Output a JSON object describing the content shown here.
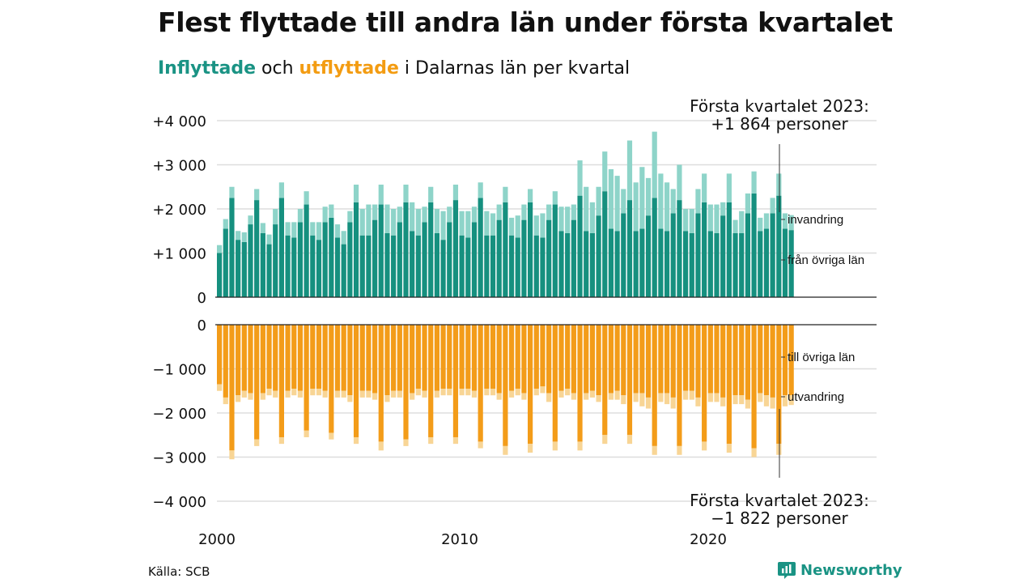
{
  "header": {
    "title": "Flest flyttade till andra län under första kvartalet",
    "subtitle_in": "Inflyttade",
    "subtitle_mid": " och ",
    "subtitle_out": "utflyttade",
    "subtitle_rest": " i Dalarnas län per kvartal"
  },
  "source": "Källa: SCB",
  "brand": {
    "name": "Newsworthy",
    "icon": "newsworthy-logo-icon"
  },
  "colors": {
    "in_domestic": "#16907f",
    "in_immigration": "#8ed4c9",
    "out_domestic": "#f39c19",
    "out_emigration": "#f8d595",
    "grid": "#dddddd",
    "axis": "#222222"
  },
  "chart_data": {
    "type": "bar",
    "layout": "diverging stacked bars, inflow panel on top and outflow panel below",
    "x_ticks": [
      "2000",
      "2010",
      "2020"
    ],
    "top_panel": {
      "ylim": [
        0,
        4000
      ],
      "y_ticks": [
        "0",
        "+1 000",
        "+2 000",
        "+3 000",
        "+4 000"
      ],
      "y_tick_values": [
        0,
        1000,
        2000,
        3000,
        4000
      ],
      "series_labels": [
        "från övriga län",
        "invandring"
      ]
    },
    "bottom_panel": {
      "ylim": [
        -4000,
        0
      ],
      "y_ticks": [
        "0",
        "−1 000",
        "−2 000",
        "−3 000",
        "−4 000"
      ],
      "y_tick_values": [
        0,
        -1000,
        -2000,
        -3000,
        -4000
      ],
      "series_labels": [
        "till övriga län",
        "utvandring"
      ]
    },
    "annotation_top": {
      "line1": "Första kvartalet 2023:",
      "line2": "+1 864 personer"
    },
    "annotation_bottom": {
      "line1": "Första kvartalet 2023:",
      "line2": "−1 822 personer"
    },
    "periods": [
      "2000 K1",
      "2000 K2",
      "2000 K3",
      "2000 K4",
      "2001 K1",
      "2001 K2",
      "2001 K3",
      "2001 K4",
      "2002 K1",
      "2002 K2",
      "2002 K3",
      "2002 K4",
      "2003 K1",
      "2003 K2",
      "2003 K3",
      "2003 K4",
      "2004 K1",
      "2004 K2",
      "2004 K3",
      "2004 K4",
      "2005 K1",
      "2005 K2",
      "2005 K3",
      "2005 K4",
      "2006 K1",
      "2006 K2",
      "2006 K3",
      "2006 K4",
      "2007 K1",
      "2007 K2",
      "2007 K3",
      "2007 K4",
      "2008 K1",
      "2008 K2",
      "2008 K3",
      "2008 K4",
      "2009 K1",
      "2009 K2",
      "2009 K3",
      "2009 K4",
      "2010 K1",
      "2010 K2",
      "2010 K3",
      "2010 K4",
      "2011 K1",
      "2011 K2",
      "2011 K3",
      "2011 K4",
      "2012 K1",
      "2012 K2",
      "2012 K3",
      "2012 K4",
      "2013 K1",
      "2013 K2",
      "2013 K3",
      "2013 K4",
      "2014 K1",
      "2014 K2",
      "2014 K3",
      "2014 K4",
      "2015 K1",
      "2015 K2",
      "2015 K3",
      "2015 K4",
      "2016 K1",
      "2016 K2",
      "2016 K3",
      "2016 K4",
      "2017 K1",
      "2017 K2",
      "2017 K3",
      "2017 K4",
      "2018 K1",
      "2018 K2",
      "2018 K3",
      "2018 K4",
      "2019 K1",
      "2019 K2",
      "2019 K3",
      "2019 K4",
      "2020 K1",
      "2020 K2",
      "2020 K3",
      "2020 K4",
      "2021 K1",
      "2021 K2",
      "2021 K3",
      "2021 K4",
      "2022 K1",
      "2022 K2",
      "2022 K3",
      "2022 K4",
      "2023 K1"
    ],
    "series": [
      {
        "name": "från övriga län",
        "panel": "top",
        "values": [
          1000,
          1550,
          2250,
          1300,
          1250,
          1650,
          2200,
          1450,
          1200,
          1650,
          2250,
          1400,
          1350,
          1700,
          2100,
          1400,
          1300,
          1700,
          1800,
          1350,
          1200,
          1700,
          2150,
          1400,
          1400,
          1750,
          2100,
          1450,
          1400,
          1700,
          2150,
          1500,
          1400,
          1700,
          2150,
          1450,
          1300,
          1700,
          2200,
          1400,
          1350,
          1700,
          2250,
          1400,
          1400,
          1750,
          2150,
          1400,
          1350,
          1750,
          2150,
          1400,
          1350,
          1750,
          2100,
          1500,
          1450,
          1750,
          2300,
          1500,
          1450,
          1850,
          2400,
          1550,
          1500,
          1900,
          2200,
          1500,
          1550,
          1850,
          2250,
          1550,
          1500,
          1900,
          2200,
          1500,
          1450,
          1900,
          2150,
          1500,
          1450,
          1850,
          2150,
          1450,
          1450,
          1900,
          2350,
          1500,
          1550,
          1900,
          2300,
          1550,
          1520
        ]
      },
      {
        "name": "invandring",
        "panel": "top",
        "values": [
          180,
          220,
          250,
          200,
          220,
          200,
          250,
          230,
          220,
          350,
          350,
          300,
          350,
          300,
          300,
          300,
          400,
          350,
          300,
          300,
          300,
          250,
          400,
          600,
          700,
          350,
          450,
          650,
          600,
          350,
          400,
          650,
          600,
          350,
          350,
          550,
          650,
          350,
          350,
          550,
          600,
          350,
          350,
          550,
          500,
          350,
          350,
          400,
          500,
          350,
          300,
          450,
          550,
          350,
          300,
          550,
          600,
          350,
          800,
          1000,
          700,
          650,
          900,
          1350,
          1250,
          550,
          1350,
          1100,
          1400,
          850,
          1500,
          1250,
          1100,
          550,
          800,
          500,
          550,
          550,
          650,
          600,
          650,
          300,
          650,
          300,
          500,
          450,
          500,
          300,
          350,
          350,
          500,
          350,
          340
        ]
      },
      {
        "name": "till övriga län",
        "panel": "bottom",
        "values": [
          1350,
          1650,
          2850,
          1600,
          1500,
          1550,
          2600,
          1550,
          1450,
          1500,
          2550,
          1500,
          1450,
          1500,
          2400,
          1450,
          1450,
          1500,
          2450,
          1500,
          1500,
          1600,
          2550,
          1500,
          1500,
          1550,
          2650,
          1600,
          1500,
          1500,
          2600,
          1550,
          1450,
          1500,
          2550,
          1500,
          1450,
          1450,
          2550,
          1450,
          1450,
          1500,
          2650,
          1450,
          1450,
          1550,
          2750,
          1500,
          1450,
          1550,
          2700,
          1450,
          1400,
          1550,
          2650,
          1500,
          1450,
          1550,
          2650,
          1550,
          1500,
          1600,
          2500,
          1550,
          1500,
          1600,
          2500,
          1550,
          1550,
          1650,
          2750,
          1550,
          1550,
          1650,
          2750,
          1500,
          1500,
          1650,
          2650,
          1550,
          1550,
          1650,
          2700,
          1600,
          1600,
          1700,
          2800,
          1550,
          1600,
          1650,
          2700,
          1600,
          1600
        ]
      },
      {
        "name": "utvandring",
        "panel": "bottom",
        "values": [
          150,
          150,
          200,
          150,
          150,
          150,
          150,
          150,
          150,
          150,
          150,
          150,
          150,
          150,
          150,
          150,
          150,
          150,
          150,
          150,
          150,
          150,
          150,
          150,
          150,
          150,
          200,
          150,
          150,
          150,
          150,
          150,
          150,
          150,
          150,
          150,
          150,
          150,
          150,
          150,
          150,
          150,
          150,
          150,
          150,
          150,
          200,
          150,
          150,
          150,
          200,
          150,
          150,
          200,
          200,
          150,
          150,
          150,
          200,
          150,
          150,
          150,
          200,
          150,
          200,
          200,
          200,
          200,
          300,
          250,
          200,
          200,
          250,
          250,
          200,
          200,
          200,
          200,
          200,
          200,
          200,
          200,
          200,
          200,
          200,
          200,
          200,
          200,
          250,
          250,
          250,
          250,
          220
        ]
      }
    ]
  }
}
